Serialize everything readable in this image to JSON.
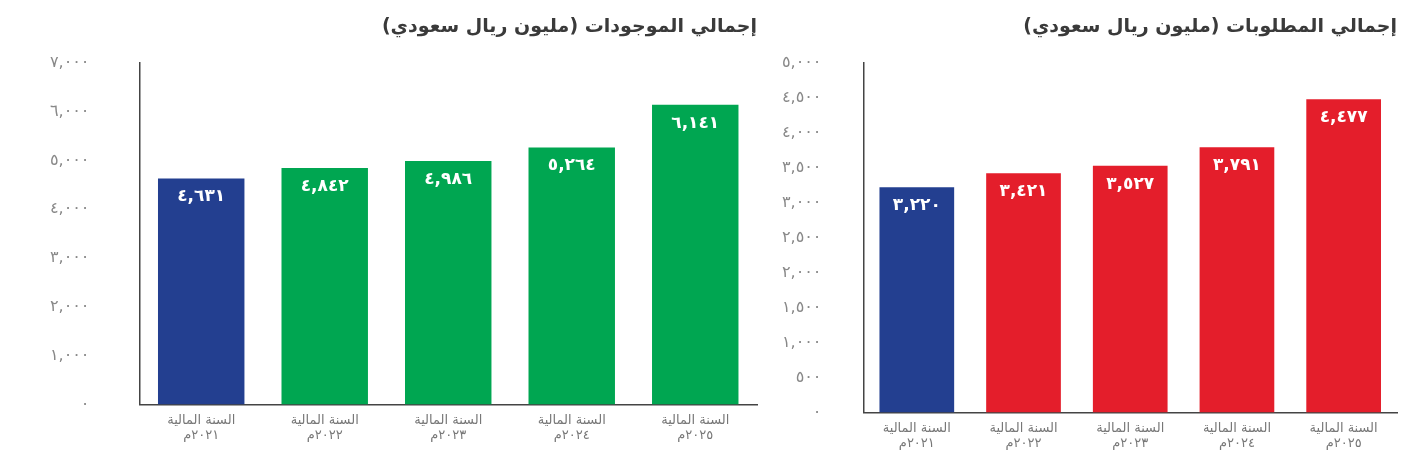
{
  "chart_data": [
    {
      "type": "bar",
      "title": "إجمالي الموجودات (مليون ريال سعودي)",
      "categories": [
        "السنة المالية\n٢٠٢١م",
        "السنة المالية\n٢٠٢٢م",
        "السنة المالية\n٢٠٢٣م",
        "السنة المالية\n٢٠٢٤م",
        "السنة المالية\n٢٠٢٥م"
      ],
      "values": [
        4631,
        4842,
        4986,
        5264,
        6141
      ],
      "colors": [
        "#233f90",
        "#00a651",
        "#00a651",
        "#00a651",
        "#00a651"
      ],
      "value_labels": [
        "٤,٦٣١",
        "٤,٨٤٢",
        "٤,٩٨٦",
        "٥,٢٦٤",
        "٦,١٤١"
      ],
      "ylim": [
        0,
        7000
      ],
      "yticks": [
        {
          "value": 0,
          "label": "٠"
        },
        {
          "value": 1000,
          "label": "١,٠٠٠"
        },
        {
          "value": 2000,
          "label": "٢,٠٠٠"
        },
        {
          "value": 3000,
          "label": "٣,٠٠٠"
        },
        {
          "value": 4000,
          "label": "٤,٠٠٠"
        },
        {
          "value": 5000,
          "label": "٥,٠٠٠"
        },
        {
          "value": 6000,
          "label": "٦,٠٠٠"
        },
        {
          "value": 7000,
          "label": "٧,٠٠٠"
        }
      ]
    },
    {
      "type": "bar",
      "title": "إجمالي المطلوبات (مليون ريال سعودي)",
      "categories": [
        "السنة المالية\n٢٠٢١م",
        "السنة المالية\n٢٠٢٢م",
        "السنة المالية\n٢٠٢٣م",
        "السنة المالية\n٢٠٢٤م",
        "السنة المالية\n٢٠٢٥م"
      ],
      "values": [
        3220,
        3421,
        3527,
        3791,
        4477
      ],
      "colors": [
        "#233f90",
        "#e41e2b",
        "#e41e2b",
        "#e41e2b",
        "#e41e2b"
      ],
      "value_labels": [
        "٣,٢٢٠",
        "٣,٤٢١",
        "٣,٥٢٧",
        "٣,٧٩١",
        "٤,٤٧٧"
      ],
      "ylim": [
        0,
        5000
      ],
      "yticks": [
        {
          "value": 0,
          "label": "٠"
        },
        {
          "value": 500,
          "label": "٥٠٠"
        },
        {
          "value": 1000,
          "label": "١,٠٠٠"
        },
        {
          "value": 1500,
          "label": "١,٥٠٠"
        },
        {
          "value": 2000,
          "label": "٢,٠٠٠"
        },
        {
          "value": 2500,
          "label": "٢,٥٠٠"
        },
        {
          "value": 3000,
          "label": "٣,٠٠٠"
        },
        {
          "value": 3500,
          "label": "٣,٥٠٠"
        },
        {
          "value": 4000,
          "label": "٤,٠٠٠"
        },
        {
          "value": 4500,
          "label": "٤,٥٠٠"
        },
        {
          "value": 5000,
          "label": "٥,٠٠٠"
        }
      ]
    }
  ]
}
